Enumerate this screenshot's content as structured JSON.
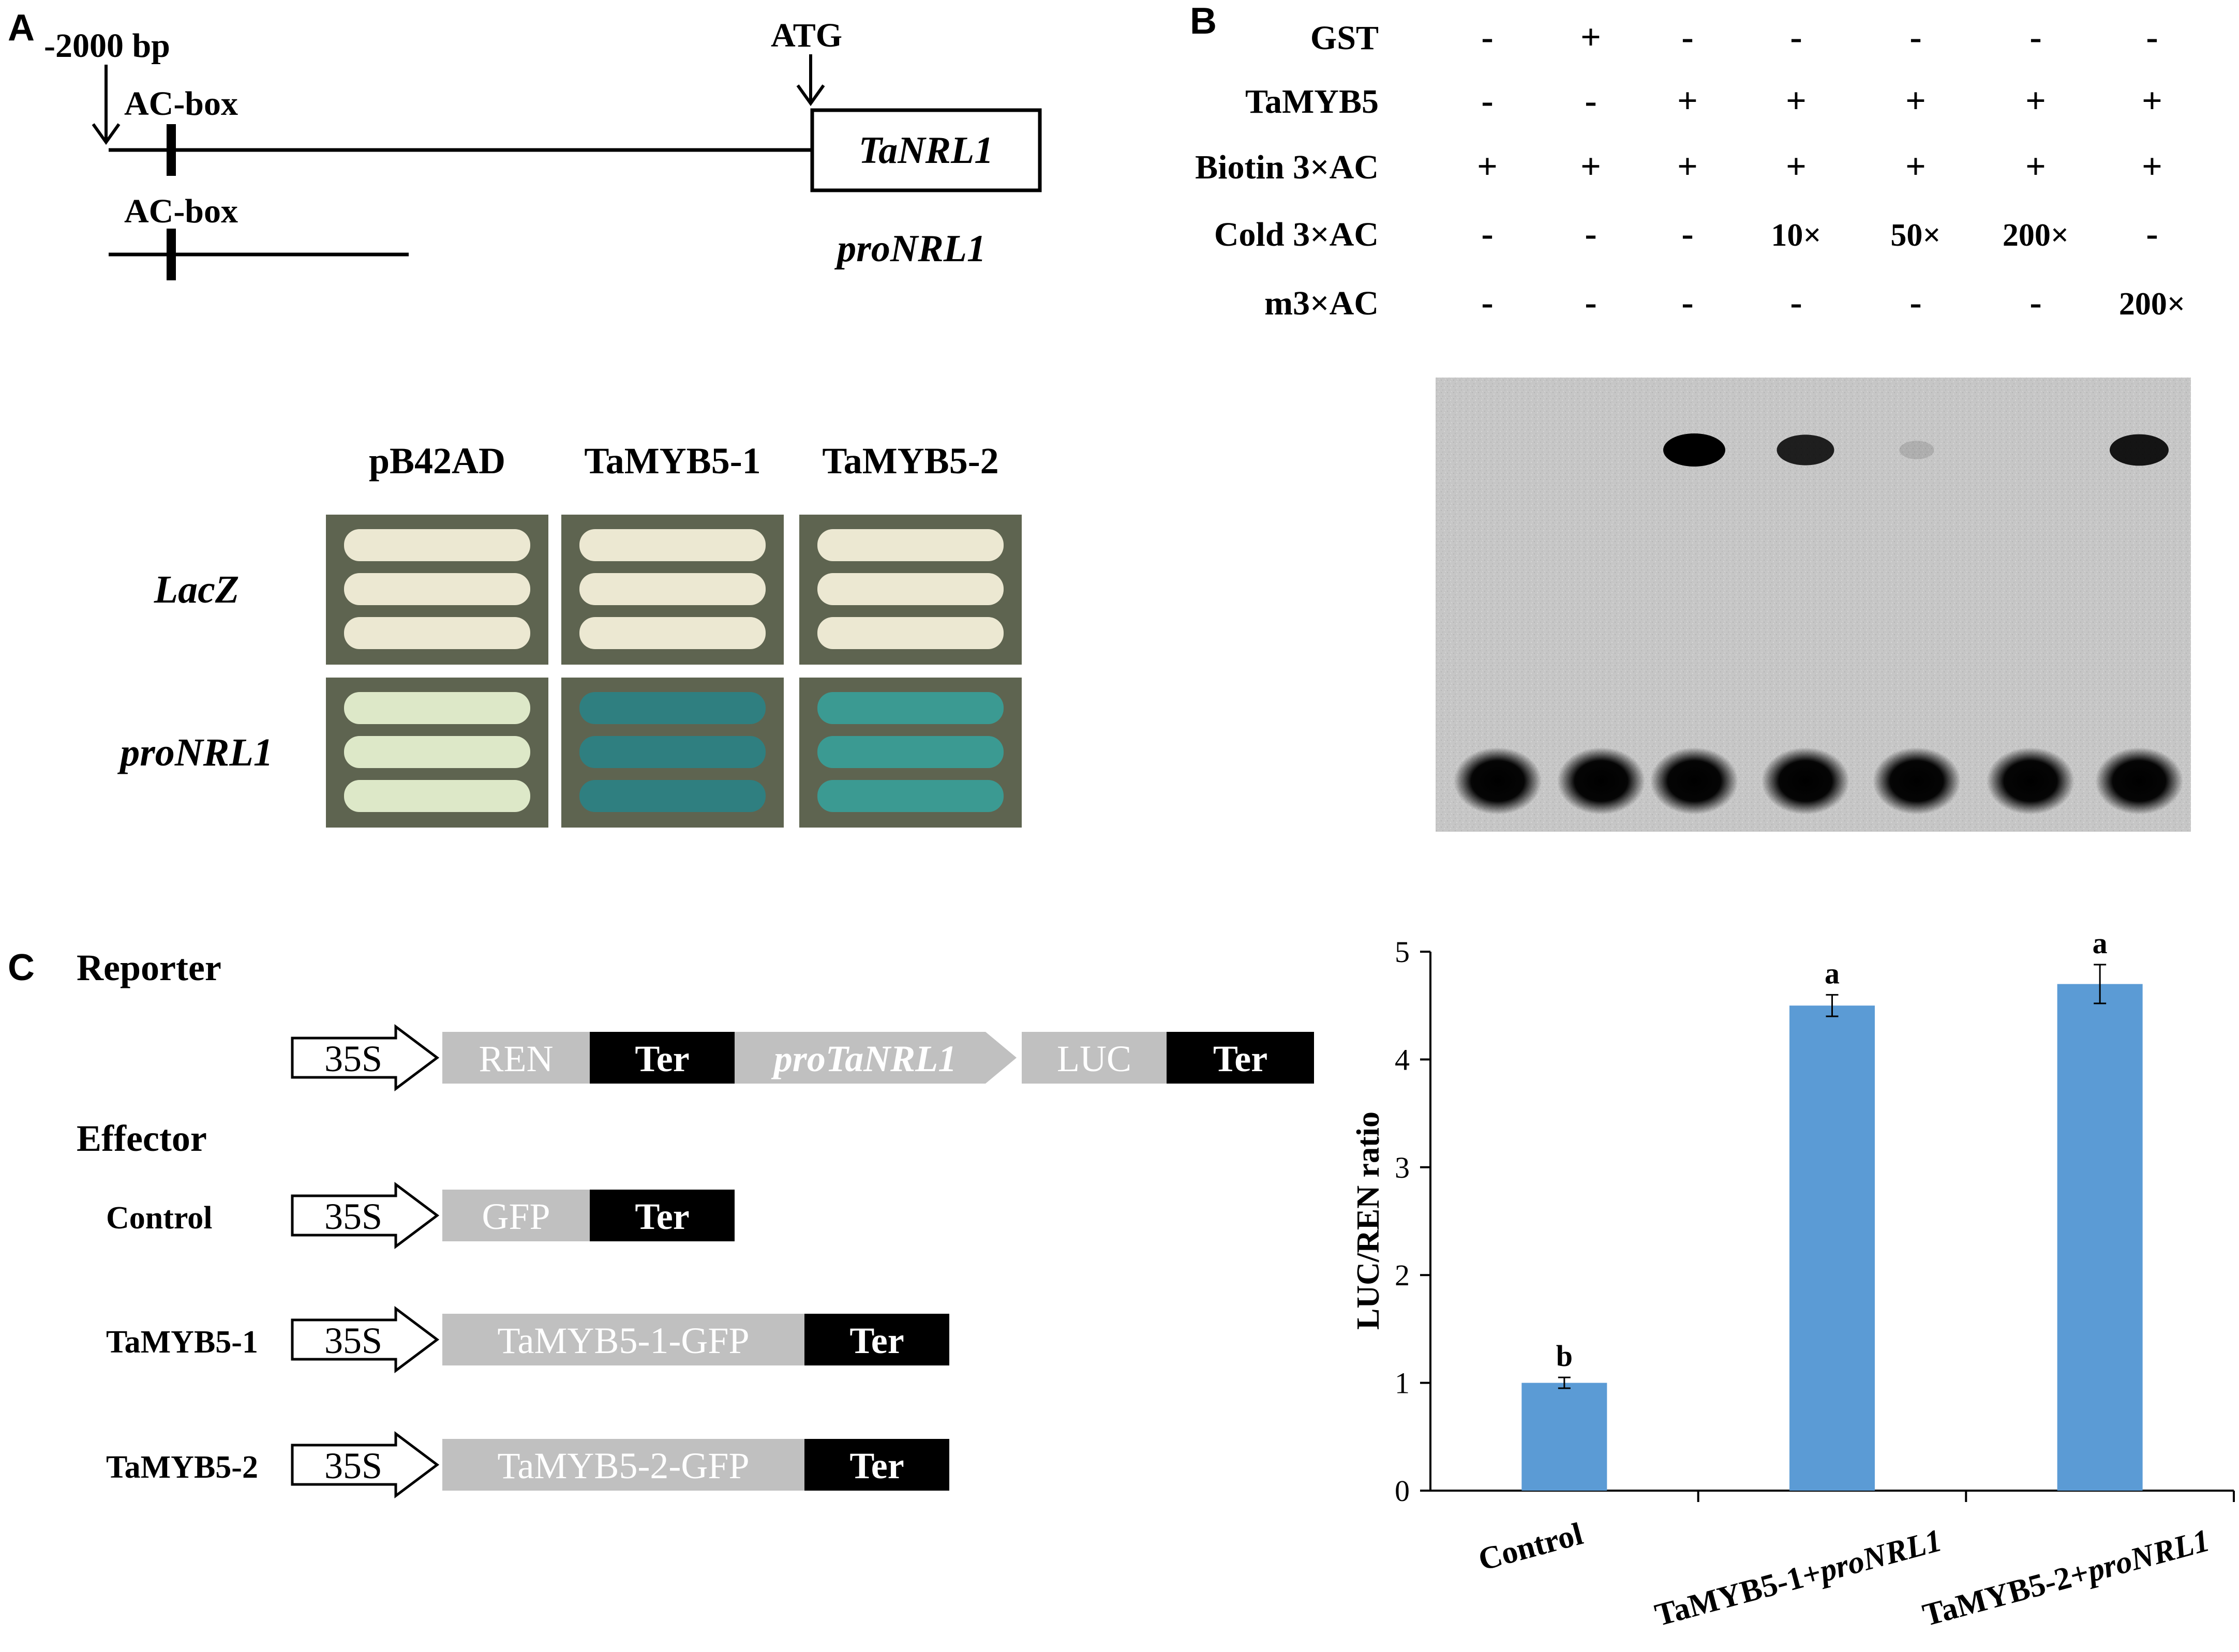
{
  "panel_a": {
    "letter": "A",
    "bp_label": "-2000 bp",
    "acbox_label_top": "AC-box",
    "atg_label": "ATG",
    "gene_label": "TaNRL1",
    "acbox_label_bottom": "AC-box",
    "promoter_label": "proNRL1",
    "y1h": {
      "columns": [
        "pB42AD",
        "TaMYB5-1",
        "TaMYB5-2"
      ],
      "rows": [
        "LacZ",
        "proNRL1"
      ],
      "colony_colors": {
        "LacZ": [
          "#ece8d2",
          "#ece8d2",
          "#ece8d2"
        ],
        "proNRL1": [
          "#dde8c8",
          "#2f7f80",
          "#3b9a92"
        ]
      }
    }
  },
  "panel_b": {
    "letter": "B",
    "rows": [
      {
        "label": "GST",
        "values": [
          "-",
          "+",
          "-",
          "-",
          "-",
          "-",
          "-"
        ]
      },
      {
        "label": "TaMYB5",
        "values": [
          "-",
          "-",
          "+",
          "+",
          "+",
          "+",
          "+"
        ]
      },
      {
        "label": "Biotin 3×AC",
        "values": [
          "+",
          "+",
          "+",
          "+",
          "+",
          "+",
          "+"
        ]
      },
      {
        "label": "Cold 3×AC",
        "values": [
          "-",
          "-",
          "-",
          "10×",
          "50×",
          "200×",
          "-"
        ]
      },
      {
        "label": "m3×AC",
        "values": [
          "-",
          "-",
          "-",
          "-",
          "-",
          "-",
          "200×"
        ]
      }
    ],
    "shifted_band_intensity": [
      0,
      0,
      1.0,
      0.85,
      0.12,
      0,
      0.9
    ],
    "gel_background": "#c8c8c8"
  },
  "panel_c": {
    "letter": "C",
    "reporter_title": "Reporter",
    "effector_title": "Effector",
    "reporter": [
      "35S",
      "REN",
      "Ter",
      "proTaNRL1",
      "LUC",
      "Ter"
    ],
    "effectors": [
      {
        "name": "Control",
        "promoter": "35S",
        "gene": "GFP",
        "terminator": "Ter"
      },
      {
        "name": "TaMYB5-1",
        "promoter": "35S",
        "gene": "TaMYB5-1-GFP",
        "terminator": "Ter"
      },
      {
        "name": "TaMYB5-2",
        "promoter": "35S",
        "gene": "TaMYB5-2-GFP",
        "terminator": "Ter"
      }
    ],
    "colors": {
      "gene_box": "#c0c0c0",
      "ter_box": "#000000",
      "gene_text": "#ffffff"
    }
  },
  "chart_data": {
    "type": "bar",
    "categories": [
      "Control",
      "TaMYB5-1+proNRL1",
      "TaMYB5-2+proNRL1"
    ],
    "category_parts": [
      {
        "plain": "Control",
        "italic": ""
      },
      {
        "plain": "TaMYB5-1+",
        "italic": "proNRL1"
      },
      {
        "plain": "TaMYB5-2+",
        "italic": "proNRL1"
      }
    ],
    "values": [
      1.0,
      4.5,
      4.7
    ],
    "errors": [
      0.05,
      0.1,
      0.18
    ],
    "significance": [
      "b",
      "a",
      "a"
    ],
    "ylabel": "LUC/REN ratio",
    "ylim": [
      0,
      5
    ],
    "yticks": [
      "0",
      "1",
      "2",
      "3",
      "4",
      "5"
    ],
    "bar_color": "#5b9bd5",
    "grid": false
  }
}
